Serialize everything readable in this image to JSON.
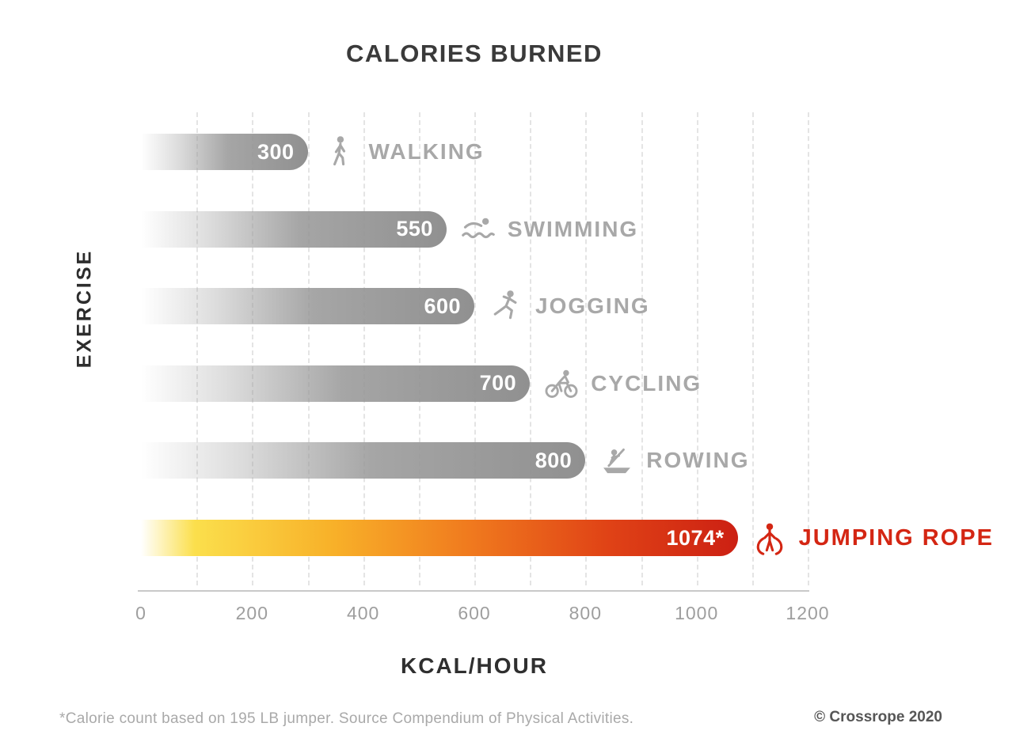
{
  "chart_data": {
    "type": "bar",
    "orientation": "horizontal",
    "title": "CALORIES BURNED",
    "xlabel": "KCAL/HOUR",
    "ylabel": "EXERCISE",
    "xlim": [
      0,
      1200
    ],
    "xticks": [
      0,
      200,
      400,
      600,
      800,
      1000,
      1200
    ],
    "gridline_step": 100,
    "grid": "vertical-dashed",
    "legend": "none",
    "categories": [
      "WALKING",
      "SWIMMING",
      "JOGGING",
      "CYCLING",
      "ROWING",
      "JUMPING ROPE"
    ],
    "values": [
      300,
      550,
      600,
      700,
      800,
      1074
    ],
    "value_labels": [
      "300",
      "550",
      "600",
      "700",
      "800",
      "1074*"
    ],
    "icons": [
      "walking-icon",
      "swimming-icon",
      "jogging-icon",
      "cycling-icon",
      "rowing-icon",
      "jumping-rope-icon"
    ],
    "highlight_index": 5,
    "colors": {
      "bar_gray": "#909090",
      "highlight_gradient": [
        "#fbdf4c",
        "#f8b129",
        "#f07a1e",
        "#cc2013"
      ],
      "label_gray": "#a8a8a8",
      "highlight": "#d42613",
      "value_text": "#ffffff"
    }
  },
  "footer": {
    "footnote": "*Calorie count based on 195 LB jumper. Source Compendium of Physical Activities.",
    "copyright": "© Crossrope 2020"
  }
}
